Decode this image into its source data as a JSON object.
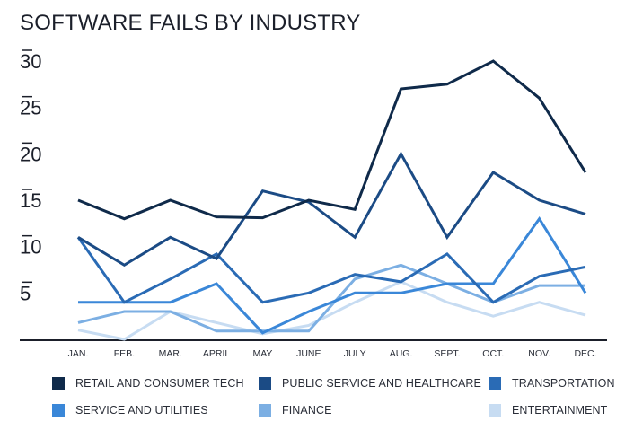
{
  "title": "SOFTWARE FAILS BY INDUSTRY",
  "chart_data": {
    "type": "line",
    "title": "SOFTWARE FAILS BY INDUSTRY",
    "categories": [
      "JAN.",
      "FEB.",
      "MAR.",
      "APRIL",
      "MAY",
      "JUNE",
      "JULY",
      "AUG.",
      "SEPT.",
      "OCT.",
      "NOV.",
      "DEC."
    ],
    "yticks": [
      "5",
      "10",
      "15",
      "20",
      "25",
      "30"
    ],
    "ylim": [
      0,
      30
    ],
    "grid": false,
    "legend_position": "bottom",
    "series": [
      {
        "name": "RETAIL AND CONSUMER TECH",
        "color": "#0f2a4a",
        "values": [
          15,
          13,
          15,
          13.2,
          13.1,
          15,
          14,
          27,
          27.5,
          30,
          26,
          18
        ]
      },
      {
        "name": "PUBLIC SERVICE AND HEALTHCARE",
        "color": "#1b4b85",
        "values": [
          11,
          8,
          11,
          8.7,
          16,
          14.8,
          11,
          20,
          11,
          18,
          15,
          13.5
        ]
      },
      {
        "name": "TRANSPORTATION",
        "color": "#2a6bb5",
        "values": [
          11,
          4,
          6.5,
          9.2,
          4,
          5,
          7,
          6.2,
          9.2,
          4,
          6.8,
          7.8
        ]
      },
      {
        "name": "SERVICE AND UTILITIES",
        "color": "#3a87d8",
        "values": [
          4,
          4,
          4,
          6,
          0.7,
          3,
          5,
          5,
          6,
          6,
          13,
          5
        ]
      },
      {
        "name": "FINANCE",
        "color": "#7cafe3",
        "values": [
          1.8,
          3,
          3,
          0.9,
          0.9,
          0.9,
          6.5,
          8,
          6,
          4,
          5.8,
          5.8
        ]
      },
      {
        "name": "ENTERTAINMENT",
        "color": "#c7dcf2",
        "values": [
          1,
          0,
          3,
          1.8,
          0.6,
          1.5,
          4,
          6.2,
          4,
          2.5,
          4,
          2.6
        ]
      }
    ]
  },
  "legend": [
    {
      "label": "RETAIL AND CONSUMER TECH",
      "color": "#0f2a4a"
    },
    {
      "label": "PUBLIC SERVICE AND HEALTHCARE",
      "color": "#1b4b85"
    },
    {
      "label": "TRANSPORTATION",
      "color": "#2a6bb5"
    },
    {
      "label": "SERVICE AND UTILITIES",
      "color": "#3a87d8"
    },
    {
      "label": "FINANCE",
      "color": "#7cafe3"
    },
    {
      "label": "ENTERTAINMENT",
      "color": "#c7dcf2"
    }
  ]
}
